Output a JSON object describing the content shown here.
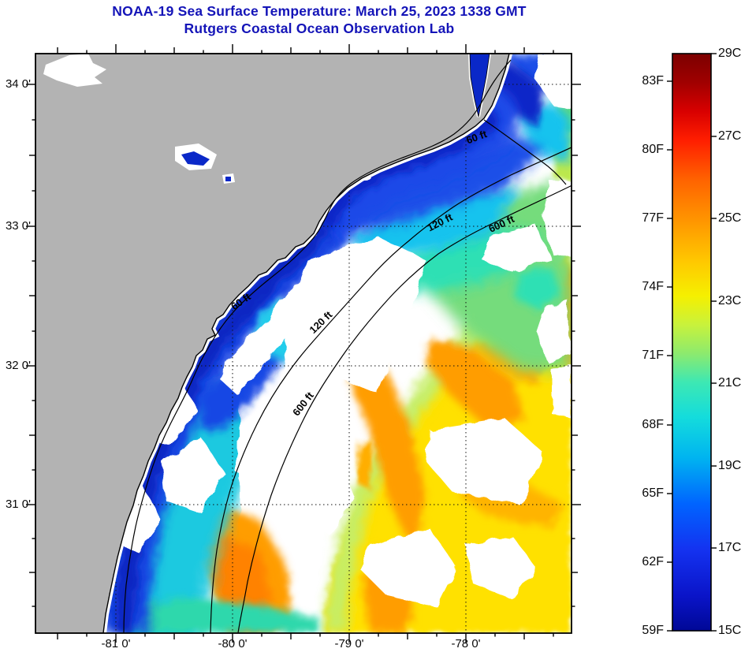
{
  "header": {
    "title_line1": "NOAA-19 Sea Surface Temperature:  March 25, 2023 1338 GMT",
    "title_line2": "Rutgers Coastal Ocean Observation Lab"
  },
  "map": {
    "lat_tick_labels": [
      "34 0'",
      "33 0'",
      "32 0'",
      "31 0'"
    ],
    "lon_tick_labels": [
      "-81 0'",
      "-80 0'",
      "-79 0'",
      "-78 0'"
    ],
    "contour_labels": [
      "60 ft",
      "120 ft",
      "600 ft",
      "60 ft",
      "120 ft",
      "600 ft"
    ]
  },
  "colorbar": {
    "fahrenheit_labels": [
      "83F",
      "80F",
      "77F",
      "74F",
      "71F",
      "68F",
      "65F",
      "62F",
      "59F"
    ],
    "celsius_labels": [
      "29C",
      "27C",
      "25C",
      "23C",
      "21C",
      "19C",
      "17C",
      "15C"
    ],
    "scale_min_c": 15,
    "scale_max_c": 29
  },
  "colors": {
    "title": "#1414b8",
    "land": "#b3b3b3",
    "cold_navy": "#0a28c8",
    "warm_yellow": "#ffe100",
    "warm_orange": "#ff9d00"
  }
}
